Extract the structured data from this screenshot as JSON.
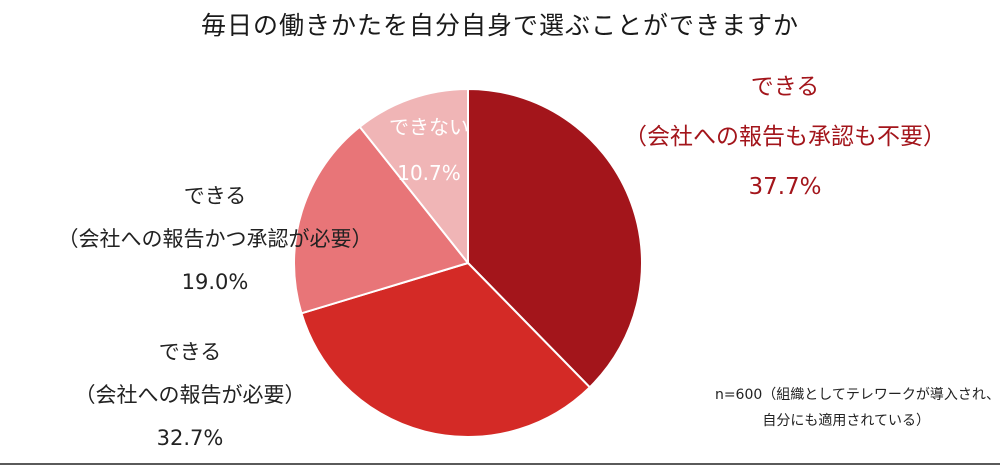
{
  "chart_data": {
    "type": "pie",
    "title": "毎日の働きかたを自分自身で選ぶことができますか",
    "start_angle_deg": 0,
    "direction": "clockwise",
    "slices": [
      {
        "label_lines": [
          "できる",
          "（会社への報告も承認も不要）"
        ],
        "value": 37.7,
        "value_label": "37.7%",
        "color": "#a3151b",
        "text_color": "#a3151b",
        "label_position": "outside-right"
      },
      {
        "label_lines": [
          "できる",
          "（会社への報告が必要）"
        ],
        "value": 32.7,
        "value_label": "32.7%",
        "color": "#d42a26",
        "text_color": "#222222",
        "label_position": "outside-left"
      },
      {
        "label_lines": [
          "できる",
          "（会社への報告かつ承認が必要）"
        ],
        "value": 19.0,
        "value_label": "19.0%",
        "color": "#e87578",
        "text_color": "#222222",
        "label_position": "outside-left"
      },
      {
        "label_lines": [
          "できない"
        ],
        "value": 10.7,
        "value_label": "10.7%",
        "color": "#f0b5b6",
        "text_color": "#ffffff",
        "label_position": "inside"
      }
    ],
    "slice_border_color": "#ffffff",
    "footnote": [
      "n=600（組織としてテレワークが導入され、",
      "自分にも適用されている）"
    ]
  }
}
